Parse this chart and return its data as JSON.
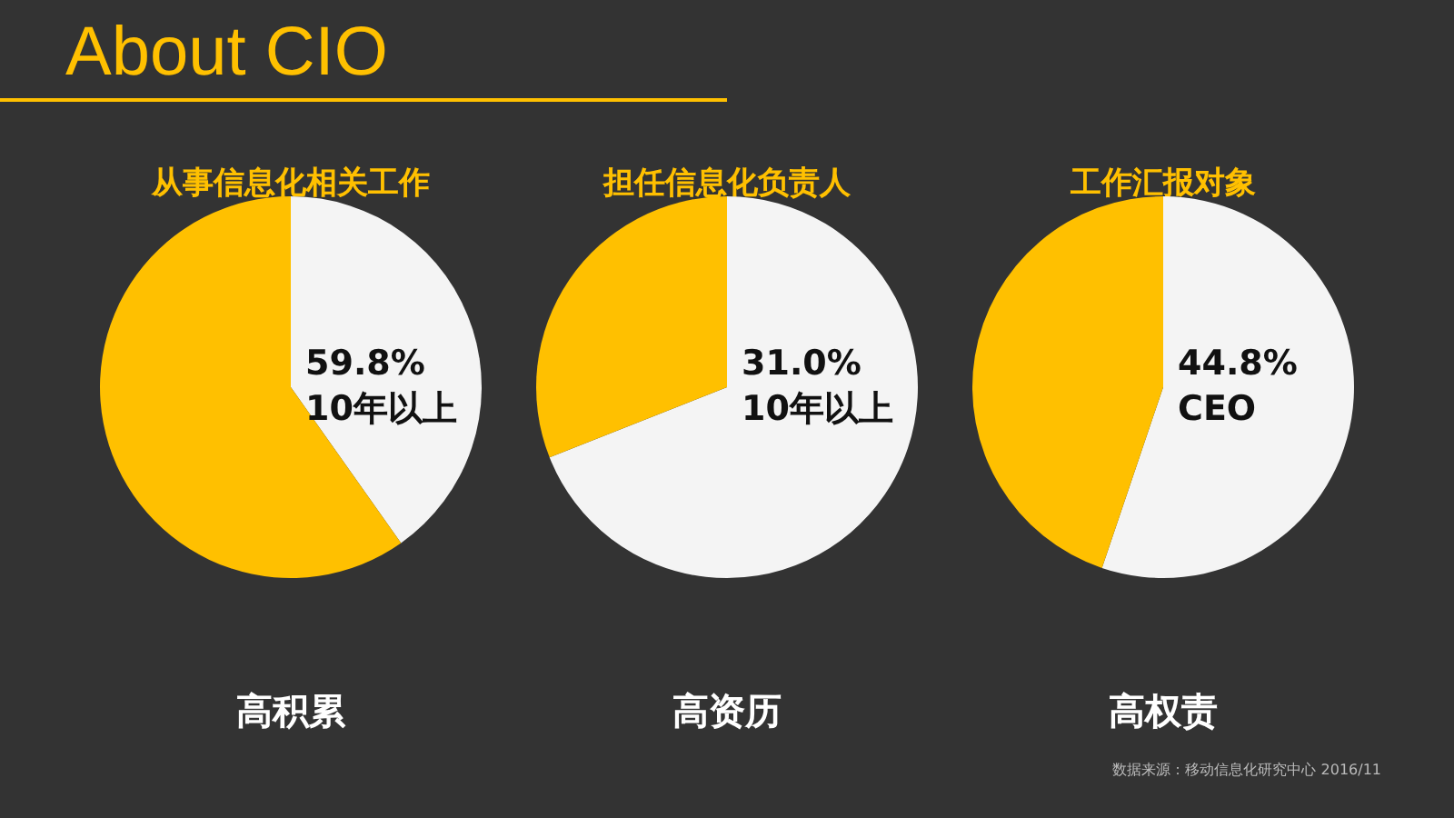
{
  "chart_data": [
    {
      "type": "other",
      "title": "About CIO",
      "annotations": [
        "数据来源：移动信息化研究中心 2016/11"
      ]
    },
    {
      "type": "pie",
      "title": "从事信息化相关工作",
      "xlabel": "高积累",
      "categories": [
        null,
        null
      ],
      "values": [
        40.2,
        59.8
      ],
      "colors": [
        "#f4f4f4",
        "#ffc000"
      ],
      "annotations": [
        "59.8%",
        "10年以上"
      ]
    },
    {
      "type": "pie",
      "title": "担任信息化负责人",
      "xlabel": "高资历",
      "categories": [
        null,
        null
      ],
      "values": [
        69.0,
        31.0
      ],
      "colors": [
        "#f4f4f4",
        "#ffc000"
      ],
      "annotations": [
        "31.0%",
        "10年以上"
      ]
    },
    {
      "type": "pie",
      "title": "工作汇报对象",
      "xlabel": "高权责",
      "categories": [
        null,
        null
      ],
      "values": [
        55.2,
        44.8
      ],
      "colors": [
        "#f4f4f4",
        "#ffc000"
      ],
      "annotations": [
        "44.8%",
        "CEO"
      ]
    }
  ]
}
